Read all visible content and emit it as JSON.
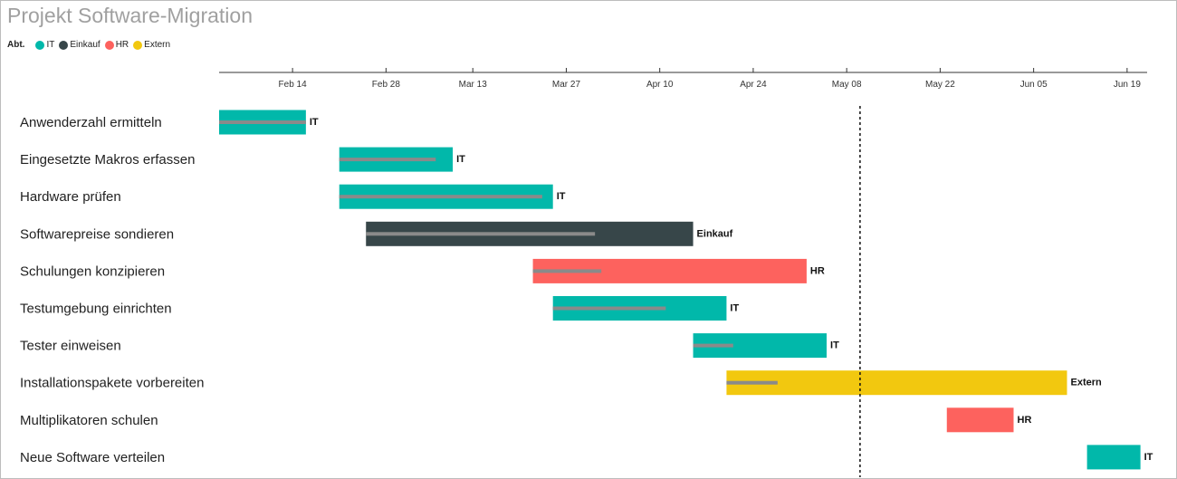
{
  "title": "Projekt Software-Migration",
  "legend": {
    "title": "Abt.",
    "items": [
      {
        "label": "IT",
        "color": "#01B8AA"
      },
      {
        "label": "Einkauf",
        "color": "#374649"
      },
      {
        "label": "HR",
        "color": "#FD625E"
      },
      {
        "label": "Extern",
        "color": "#F2C80F"
      }
    ]
  },
  "chart_data": {
    "type": "gantt",
    "title": "Projekt Software-Migration",
    "x_axis": {
      "type": "date",
      "range": [
        "2019-02-03",
        "2019-06-22"
      ],
      "ticks": [
        {
          "date": "2019-02-14",
          "label": "Feb 14"
        },
        {
          "date": "2019-02-28",
          "label": "Feb 28"
        },
        {
          "date": "2019-03-13",
          "label": "Mar 13"
        },
        {
          "date": "2019-03-27",
          "label": "Mar 27"
        },
        {
          "date": "2019-04-10",
          "label": "Apr 10"
        },
        {
          "date": "2019-04-24",
          "label": "Apr 24"
        },
        {
          "date": "2019-05-08",
          "label": "May 08"
        },
        {
          "date": "2019-05-22",
          "label": "May 22"
        },
        {
          "date": "2019-06-05",
          "label": "Jun 05"
        },
        {
          "date": "2019-06-19",
          "label": "Jun 19"
        }
      ]
    },
    "today_line": "2019-05-10",
    "legend_title": "Abt.",
    "legend_placement": "top-left",
    "tasks": [
      {
        "name": "Anwenderzahl ermitteln",
        "dept": "IT",
        "start": "2019-02-03",
        "end": "2019-02-16",
        "completion": 1.0
      },
      {
        "name": "Eingesetzte Makros erfassen",
        "dept": "IT",
        "start": "2019-02-21",
        "end": "2019-03-10",
        "completion": 0.85
      },
      {
        "name": "Hardware prüfen",
        "dept": "IT",
        "start": "2019-02-21",
        "end": "2019-03-25",
        "completion": 0.95
      },
      {
        "name": "Softwarepreise sondieren",
        "dept": "Einkauf",
        "start": "2019-02-25",
        "end": "2019-04-15",
        "completion": 0.7
      },
      {
        "name": "Schulungen konzipieren",
        "dept": "HR",
        "start": "2019-03-22",
        "end": "2019-05-02",
        "completion": 0.25
      },
      {
        "name": "Testumgebung einrichten",
        "dept": "IT",
        "start": "2019-03-25",
        "end": "2019-04-20",
        "completion": 0.65
      },
      {
        "name": "Tester einweisen",
        "dept": "IT",
        "start": "2019-04-15",
        "end": "2019-05-05",
        "completion": 0.3
      },
      {
        "name": "Installationspakete vorbereiten",
        "dept": "Extern",
        "start": "2019-04-20",
        "end": "2019-06-10",
        "completion": 0.15
      },
      {
        "name": "Multiplikatoren schulen",
        "dept": "HR",
        "start": "2019-05-23",
        "end": "2019-06-02",
        "completion": 0
      },
      {
        "name": "Neue Software verteilen",
        "dept": "IT",
        "start": "2019-06-13",
        "end": "2019-06-21",
        "completion": 0
      }
    ]
  }
}
